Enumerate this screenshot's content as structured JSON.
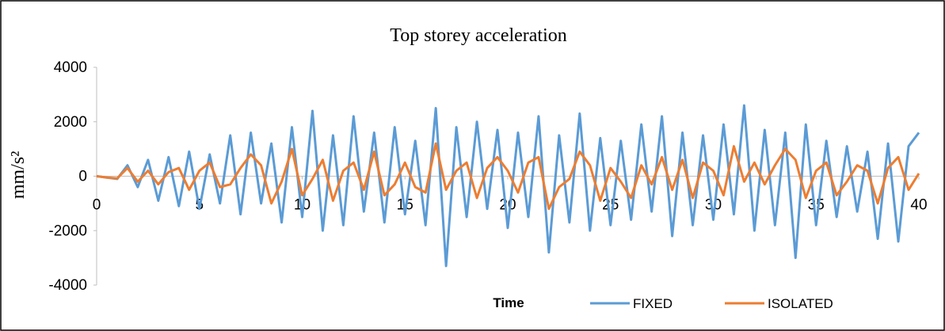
{
  "chart_data": {
    "type": "line",
    "title": "Top storey acceleration",
    "xlabel": "Time",
    "ylabel": "mm/s²",
    "x": [
      0,
      0.5,
      1,
      1.5,
      2,
      2.5,
      3,
      3.5,
      4,
      4.5,
      5,
      5.5,
      6,
      6.5,
      7,
      7.5,
      8,
      8.5,
      9,
      9.5,
      10,
      10.5,
      11,
      11.5,
      12,
      12.5,
      13,
      13.5,
      14,
      14.5,
      15,
      15.5,
      16,
      16.5,
      17,
      17.5,
      18,
      18.5,
      19,
      19.5,
      20,
      20.5,
      21,
      21.5,
      22,
      22.5,
      23,
      23.5,
      24,
      24.5,
      25,
      25.5,
      26,
      26.5,
      27,
      27.5,
      28,
      28.5,
      29,
      29.5,
      30,
      30.5,
      31,
      31.5,
      32,
      32.5,
      33,
      33.5,
      34,
      34.5,
      35,
      35.5,
      36,
      36.5,
      37,
      37.5,
      38,
      38.5,
      39,
      39.5,
      40
    ],
    "series": [
      {
        "name": "FIXED",
        "color": "#5b9bd5",
        "values": [
          0,
          -50,
          -100,
          400,
          -400,
          600,
          -900,
          700,
          -1100,
          900,
          -1200,
          800,
          -1000,
          1500,
          -1400,
          1600,
          -1000,
          1200,
          -1700,
          1800,
          -1500,
          2400,
          -2000,
          1500,
          -1800,
          2200,
          -1300,
          1600,
          -1700,
          1800,
          -1400,
          1300,
          -1800,
          2500,
          -3300,
          1800,
          -1500,
          2000,
          -1200,
          1700,
          -1900,
          1600,
          -1500,
          2200,
          -2800,
          1500,
          -1700,
          2300,
          -2000,
          1400,
          -1800,
          1300,
          -1600,
          1900,
          -1300,
          2200,
          -2200,
          1600,
          -1800,
          1500,
          -1600,
          1900,
          -1400,
          2600,
          -2000,
          1700,
          -1800,
          1600,
          -3000,
          1900,
          -1800,
          1300,
          -1500,
          1100,
          -1300,
          900,
          -2300,
          1200,
          -2400,
          1100,
          1600
        ]
      },
      {
        "name": "ISOLATED",
        "color": "#ed7d31",
        "values": [
          0,
          -50,
          -80,
          300,
          -200,
          200,
          -300,
          150,
          300,
          -500,
          200,
          500,
          -400,
          -300,
          300,
          800,
          400,
          -1000,
          -200,
          1000,
          -700,
          -100,
          600,
          -900,
          200,
          500,
          -500,
          900,
          -700,
          -300,
          500,
          -400,
          -600,
          1200,
          -500,
          200,
          500,
          -800,
          300,
          700,
          200,
          -600,
          500,
          700,
          -1200,
          -400,
          -100,
          900,
          400,
          -900,
          300,
          -200,
          -800,
          400,
          -300,
          700,
          -500,
          600,
          -800,
          500,
          200,
          -700,
          1100,
          -200,
          500,
          -300,
          400,
          1000,
          600,
          -800,
          200,
          500,
          -700,
          -200,
          400,
          200,
          -1000,
          300,
          700,
          -500,
          100
        ]
      }
    ],
    "xlim": [
      0,
      40
    ],
    "xticks": [
      0,
      5,
      10,
      15,
      20,
      25,
      30,
      35,
      40
    ],
    "ylim": [
      -4000,
      4000
    ],
    "yticks": [
      -4000,
      -2000,
      0,
      2000,
      4000
    ]
  }
}
